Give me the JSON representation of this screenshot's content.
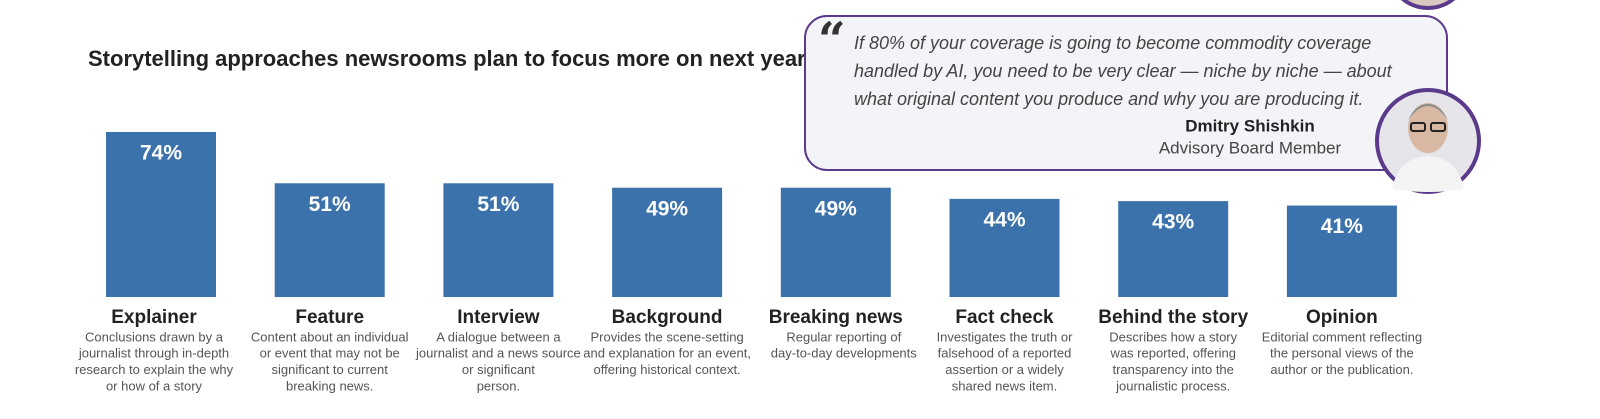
{
  "chart_data": {
    "type": "bar",
    "title": "Storytelling approaches newsrooms plan to focus more on next year",
    "categories": [
      "Explainer",
      "Feature",
      "Interview",
      "Background",
      "Breaking news",
      "Fact check",
      "Behind the story",
      "Opinion"
    ],
    "values": [
      74,
      51,
      51,
      49,
      49,
      44,
      43,
      41
    ],
    "value_labels": [
      "74%",
      "51%",
      "51%",
      "49%",
      "49%",
      "44%",
      "43%",
      "41%"
    ],
    "color": "#3c72ab",
    "descriptions": [
      [
        "Conclusions drawn by a",
        "journalist through in-depth",
        "research to explain the why",
        "or how of a story"
      ],
      [
        "Content about an individual",
        "or event that may not be",
        "significant to current",
        "breaking news."
      ],
      [
        "A dialogue between a",
        "journalist and a news source",
        "or significant",
        "person."
      ],
      [
        "Provides the scene-setting",
        "and explanation for an event,",
        "offering historical context."
      ],
      [
        "Regular reporting of",
        "day-to-day developments"
      ],
      [
        "Investigates the truth or",
        "falsehood of a reported",
        "assertion or a widely",
        "shared news item."
      ],
      [
        "Describes how a story",
        "was reported, offering",
        "transparency into the",
        "journalistic process."
      ],
      [
        "Editorial comment reflecting",
        "the personal views of the",
        "author or the publication."
      ]
    ]
  },
  "quote": {
    "lines": [
      "If 80% of your coverage is going to become commodity coverage",
      "handled by AI, you need to be very clear — niche by niche — about",
      "what original content you produce and why you are producing it."
    ],
    "author": "Dmitry Shishkin",
    "role": "Advisory Board Member"
  }
}
